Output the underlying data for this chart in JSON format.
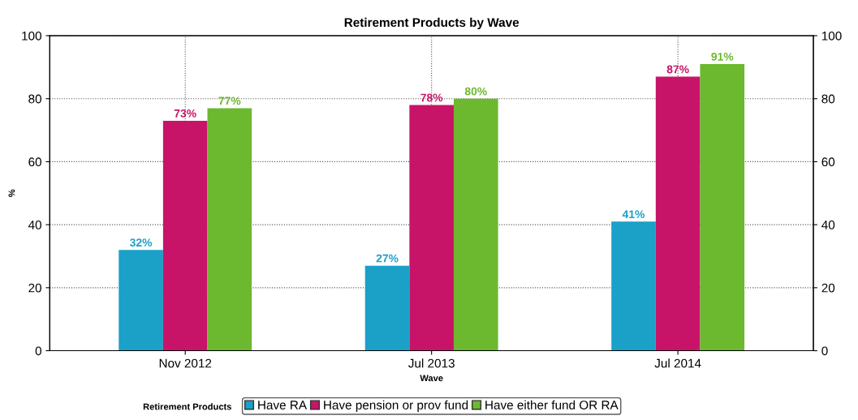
{
  "chart_data": {
    "type": "bar",
    "title": "Retirement Products by Wave",
    "xlabel": "Wave",
    "ylabel": "%",
    "legend_title": "Retirement Products",
    "categories": [
      "Nov 2012",
      "Jul 2013",
      "Jul 2014"
    ],
    "series": [
      {
        "name": "Have RA",
        "color": "#1ba0c8",
        "values": [
          32,
          27,
          41
        ],
        "value_labels": [
          "32%",
          "27%",
          "41%"
        ]
      },
      {
        "name": "Have pension or prov fund",
        "color": "#c81468",
        "values": [
          73,
          78,
          87
        ],
        "value_labels": [
          "73%",
          "78%",
          "87%"
        ]
      },
      {
        "name": "Have either fund OR RA",
        "color": "#6cb82e",
        "values": [
          77,
          80,
          91
        ],
        "value_labels": [
          "77%",
          "80%",
          "91%"
        ]
      }
    ],
    "ylim": [
      0,
      100
    ],
    "yticks": [
      0,
      20,
      40,
      60,
      80,
      100
    ],
    "y2lim": [
      0,
      100
    ],
    "y2ticks": [
      0,
      20,
      40,
      60,
      80,
      100
    ],
    "grid": true,
    "legend": "bottom"
  }
}
